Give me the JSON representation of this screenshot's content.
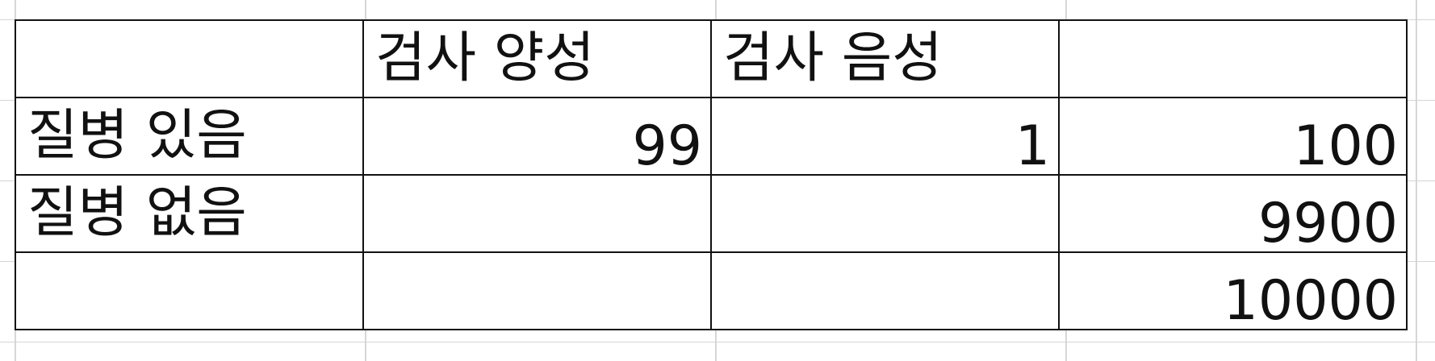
{
  "table": {
    "header": {
      "corner": "",
      "test_positive": "검사 양성",
      "test_negative": "검사 음성",
      "total": ""
    },
    "rows": [
      {
        "label": "질병 있음",
        "positive": "99",
        "negative": "1",
        "total": "100"
      },
      {
        "label": "질병 없음",
        "positive": "",
        "negative": "",
        "total": "9900"
      },
      {
        "label": "",
        "positive": "",
        "negative": "",
        "total": "10000"
      }
    ]
  }
}
